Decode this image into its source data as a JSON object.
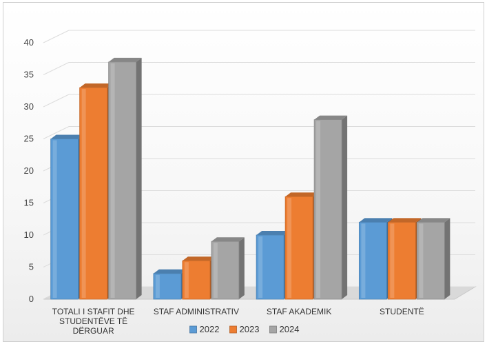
{
  "chart_data": {
    "type": "bar",
    "title": "",
    "xlabel": "",
    "ylabel": "",
    "categories": [
      [
        "TOTALI I STAFIT DHE",
        "STUDENTËVE TË",
        "DËRGUAR"
      ],
      [
        "STAF ADMINISTRATIV"
      ],
      [
        "STAF AKADEMIK"
      ],
      [
        "STUDENTË"
      ]
    ],
    "series": [
      {
        "name": "2022",
        "color": "#5b9bd5",
        "values": [
          25,
          4,
          10,
          12
        ]
      },
      {
        "name": "2023",
        "color": "#ed7d31",
        "values": [
          33,
          6,
          16,
          12
        ]
      },
      {
        "name": "2024",
        "color": "#a5a5a5",
        "values": [
          37,
          9,
          28,
          12
        ]
      }
    ],
    "ylim": [
      0,
      40
    ],
    "yticks": [
      0,
      5,
      10,
      15,
      20,
      25,
      30,
      35,
      40
    ],
    "grid": true,
    "legend": "bottom-center",
    "style": "3d-column"
  }
}
